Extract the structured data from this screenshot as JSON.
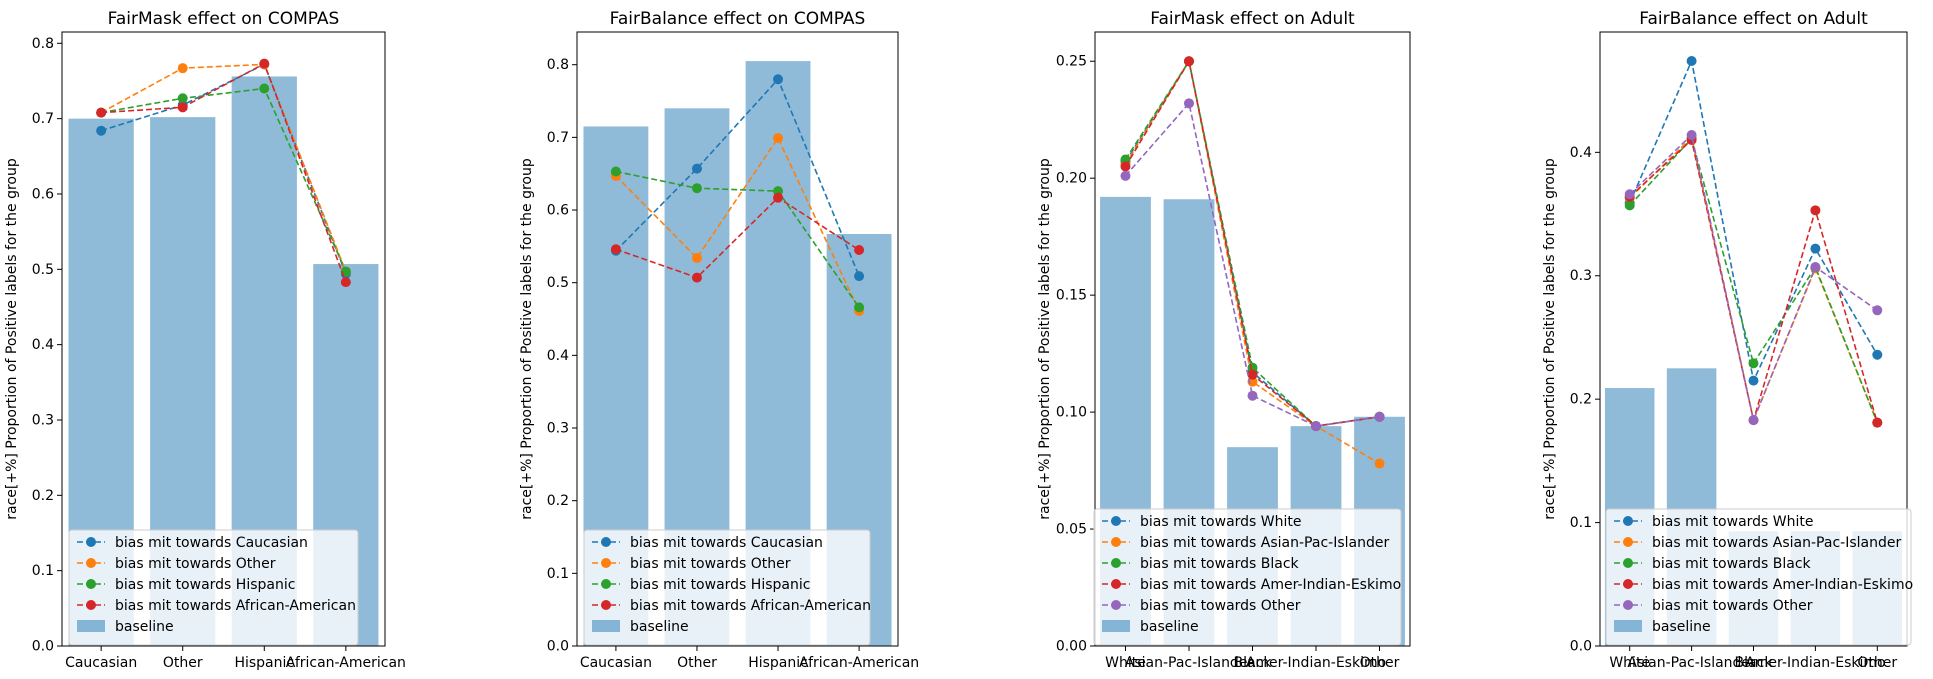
{
  "colors": {
    "blue": "#1f77b4",
    "orange": "#ff7f0e",
    "green": "#2ca02c",
    "red": "#d62728",
    "purple": "#9467bd",
    "bar": "#1f77b4"
  },
  "chart_data": [
    {
      "type": "bar",
      "title": "FairMask effect on COMPAS",
      "xlabel": "",
      "ylabel": "race[+%] Proportion of Positive labels for the group",
      "categories": [
        "Caucasian",
        "Other",
        "Hispanic",
        "African-American"
      ],
      "ylim": [
        0,
        0.815
      ],
      "yticks": [
        "0.0",
        "0.1",
        "0.2",
        "0.3",
        "0.4",
        "0.5",
        "0.6",
        "0.7",
        "0.8"
      ],
      "legend_position": "bottom-left",
      "bars": {
        "name": "baseline",
        "values": [
          0.7,
          0.702,
          0.756,
          0.507
        ]
      },
      "series": [
        {
          "name": "bias mit towards Caucasian",
          "color": "blue",
          "values": [
            0.684,
            0.718,
            0.772,
            0.494
          ]
        },
        {
          "name": "bias mit towards Other",
          "color": "orange",
          "values": [
            0.708,
            0.767,
            0.772,
            0.497
          ]
        },
        {
          "name": "bias mit towards Hispanic",
          "color": "green",
          "values": [
            0.708,
            0.727,
            0.74,
            0.497
          ]
        },
        {
          "name": "bias mit towards African-American",
          "color": "red",
          "values": [
            0.708,
            0.715,
            0.773,
            0.483
          ]
        }
      ]
    },
    {
      "type": "bar",
      "title": "FairBalance effect on COMPAS",
      "xlabel": "",
      "ylabel": "race[+%] Proportion of Positive labels for the group",
      "categories": [
        "Caucasian",
        "Other",
        "Hispanic",
        "African-American"
      ],
      "ylim": [
        0,
        0.845
      ],
      "yticks": [
        "0.0",
        "0.1",
        "0.2",
        "0.3",
        "0.4",
        "0.5",
        "0.6",
        "0.7",
        "0.8"
      ],
      "legend_position": "bottom-left",
      "bars": {
        "name": "baseline",
        "values": [
          0.715,
          0.74,
          0.805,
          0.567
        ]
      },
      "series": [
        {
          "name": "bias mit towards Caucasian",
          "color": "blue",
          "values": [
            0.544,
            0.657,
            0.78,
            0.509
          ]
        },
        {
          "name": "bias mit towards Other",
          "color": "orange",
          "values": [
            0.647,
            0.534,
            0.699,
            0.461
          ]
        },
        {
          "name": "bias mit towards Hispanic",
          "color": "green",
          "values": [
            0.653,
            0.63,
            0.626,
            0.466
          ]
        },
        {
          "name": "bias mit towards African-American",
          "color": "red",
          "values": [
            0.546,
            0.507,
            0.617,
            0.545
          ]
        }
      ]
    },
    {
      "type": "bar",
      "title": "FairMask effect on Adult",
      "xlabel": "",
      "ylabel": "race[+%] Proportion of Positive labels for the group",
      "categories": [
        "White",
        "Asian-Pac-Islander",
        "Black",
        "Amer-Indian-Eskimo",
        "Other"
      ],
      "ylim": [
        0,
        0.2625
      ],
      "yticks": [
        "0.00",
        "0.05",
        "0.10",
        "0.15",
        "0.20",
        "0.25"
      ],
      "legend_position": "bottom-left",
      "bars": {
        "name": "baseline",
        "values": [
          0.192,
          0.191,
          0.085,
          0.094,
          0.098
        ]
      },
      "series": [
        {
          "name": "bias mit towards White",
          "color": "blue",
          "values": [
            0.207,
            0.25,
            0.117,
            0.094,
            0.098
          ]
        },
        {
          "name": "bias mit towards Asian-Pac-Islander",
          "color": "orange",
          "values": [
            0.206,
            0.25,
            0.113,
            0.094,
            0.078
          ]
        },
        {
          "name": "bias mit towards Black",
          "color": "green",
          "values": [
            0.208,
            0.25,
            0.119,
            0.094,
            0.098
          ]
        },
        {
          "name": "bias mit towards Amer-Indian-Eskimo",
          "color": "red",
          "values": [
            0.205,
            0.25,
            0.116,
            0.094,
            0.098
          ]
        },
        {
          "name": "bias mit towards Other",
          "color": "purple",
          "values": [
            0.201,
            0.232,
            0.107,
            0.094,
            0.098
          ]
        }
      ]
    },
    {
      "type": "bar",
      "title": "FairBalance effect on Adult",
      "xlabel": "",
      "ylabel": "race[+%] Proportion of Positive labels for the group",
      "categories": [
        "White",
        "Asian-Pac-Islander",
        "Black",
        "Amer-Indian-Eskimo",
        "Other"
      ],
      "ylim": [
        0,
        0.4975
      ],
      "yticks": [
        "0.0",
        "0.1",
        "0.2",
        "0.3",
        "0.4"
      ],
      "legend_position": "bottom-left",
      "bars": {
        "name": "baseline",
        "values": [
          0.209,
          0.225,
          0.093,
          0.093,
          0.093
        ]
      },
      "series": [
        {
          "name": "bias mit towards White",
          "color": "blue",
          "values": [
            0.359,
            0.474,
            0.215,
            0.322,
            0.236
          ]
        },
        {
          "name": "bias mit towards Asian-Pac-Islander",
          "color": "orange",
          "values": [
            0.363,
            0.412,
            0.183,
            0.306,
            0.181
          ]
        },
        {
          "name": "bias mit towards Black",
          "color": "green",
          "values": [
            0.357,
            0.411,
            0.229,
            0.307,
            0.181
          ]
        },
        {
          "name": "bias mit towards Amer-Indian-Eskimo",
          "color": "red",
          "values": [
            0.364,
            0.41,
            0.183,
            0.353,
            0.181
          ]
        },
        {
          "name": "bias mit towards Other",
          "color": "purple",
          "values": [
            0.366,
            0.414,
            0.183,
            0.307,
            0.272
          ]
        }
      ]
    }
  ]
}
